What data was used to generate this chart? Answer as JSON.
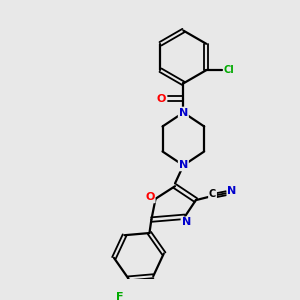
{
  "bg_color": "#e8e8e8",
  "bond_color": "#000000",
  "atom_colors": {
    "N": "#0000cc",
    "O": "#ff0000",
    "F": "#00aa00",
    "Cl": "#00aa00",
    "C": "#000000"
  },
  "figsize": [
    3.0,
    3.0
  ],
  "dpi": 100
}
